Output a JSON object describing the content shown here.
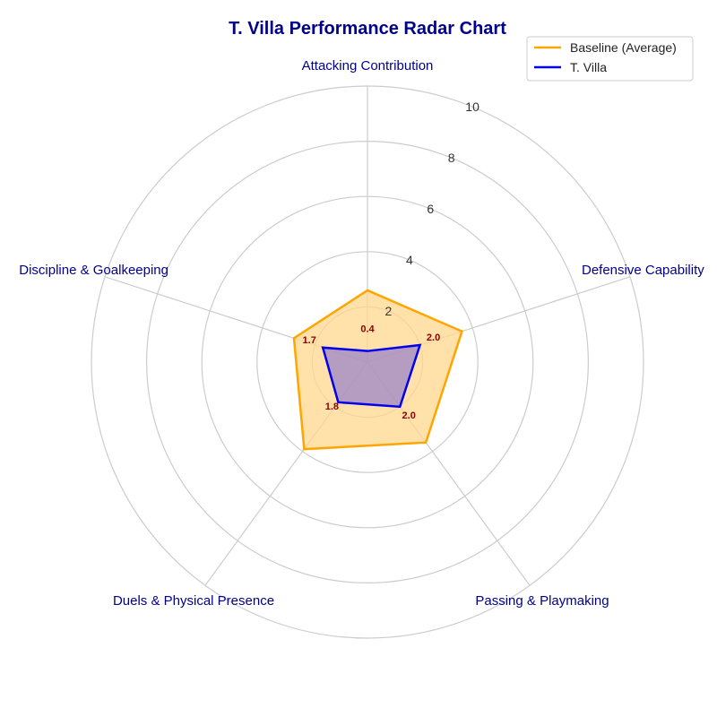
{
  "chart_data": {
    "type": "radar",
    "title": "T. Villa Performance Radar Chart",
    "categories": [
      "Attacking Contribution",
      "Defensive Capability",
      "Passing & Playmaking",
      "Duels & Physical Presence",
      "Discipline & Goalkeeping"
    ],
    "r_ticks": [
      "2",
      "4",
      "6",
      "8",
      "10"
    ],
    "r_range": [
      0,
      10
    ],
    "grid": true,
    "legend_position": "top-right",
    "series": [
      {
        "name": "Baseline (Average)",
        "values": [
          2.6,
          3.6,
          3.6,
          3.9,
          2.8
        ],
        "color": "#ffa500",
        "fill": "#ffd78c"
      },
      {
        "name": "T. Villa",
        "values": [
          0.4,
          2.0,
          2.0,
          1.8,
          1.7
        ],
        "color": "#0000ee",
        "fill": "#9b86c8",
        "data_labels": [
          "0.4",
          "2.0",
          "2.0",
          "1.8",
          "1.7"
        ]
      }
    ]
  }
}
